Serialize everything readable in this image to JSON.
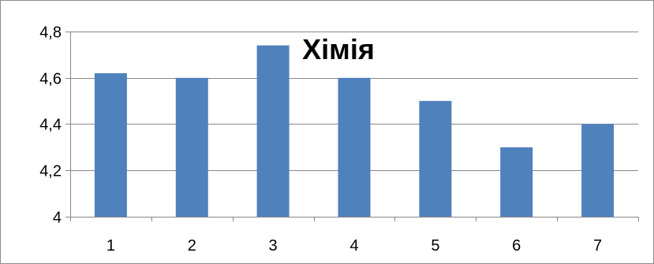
{
  "chart_data": {
    "type": "bar",
    "title": "Хімія",
    "categories": [
      "1",
      "2",
      "3",
      "4",
      "5",
      "6",
      "7"
    ],
    "values": [
      4.62,
      4.6,
      4.74,
      4.6,
      4.5,
      4.3,
      4.4
    ],
    "xlabel": "",
    "ylabel": "",
    "ylim": [
      4,
      4.8
    ],
    "yticks": [
      4,
      4.2,
      4.4,
      4.6,
      4.8
    ],
    "ytick_labels": [
      "4",
      "4,2",
      "4,4",
      "4,6",
      "4,8"
    ],
    "grid": true,
    "legend": "none",
    "colors": {
      "bar": "#4f81bd",
      "grid": "#888888",
      "axis": "#888888"
    }
  }
}
